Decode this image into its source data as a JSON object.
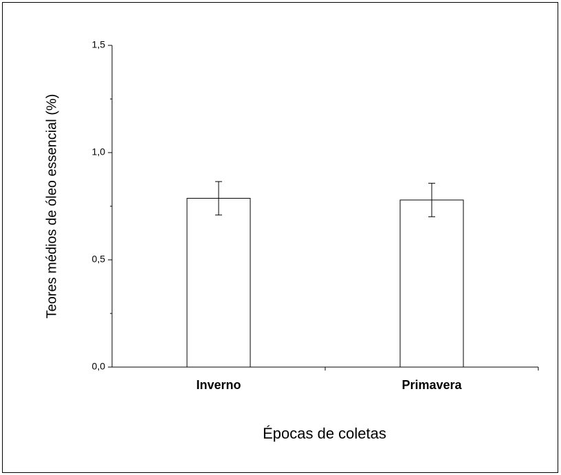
{
  "chart_data": {
    "type": "bar",
    "x_label": "Épocas de coletas",
    "y_label": "Teores médios de óleo essencial (%)",
    "categories": [
      "Inverno",
      "Primavera"
    ],
    "values": [
      0.787,
      0.779
    ],
    "errors": [
      0.078,
      0.078
    ],
    "color": "#ffffff",
    "ylim": [
      0,
      1.5
    ],
    "yticks": [
      {
        "value": 0,
        "label": "0,0"
      },
      {
        "value": 0.5,
        "label": "0,5"
      },
      {
        "value": 1.0,
        "label": "1,0"
      },
      {
        "value": 1.5,
        "label": "1,5"
      }
    ],
    "minor_yticks": [
      0.25,
      0.75,
      1.25
    ],
    "grid": false
  }
}
